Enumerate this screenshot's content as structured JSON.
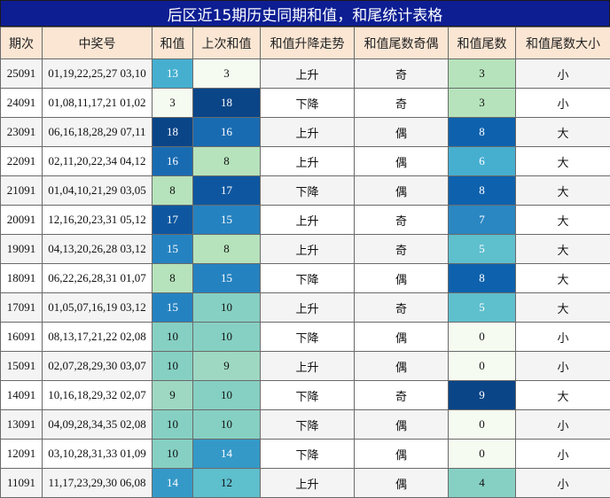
{
  "title": "后区近15期历史同期和值，和尾统计表格",
  "headers": [
    "期次",
    "中奖号",
    "和值",
    "上次和值",
    "和值升降走势",
    "和值尾数奇偶",
    "和值尾数",
    "和值尾数大小"
  ],
  "rows": [
    {
      "issue": "25091",
      "numbers": "01,19,22,25,27 03,10",
      "sum": "13",
      "prev_sum": "3",
      "trend": "上升",
      "parity": "奇",
      "tail": "3",
      "size": "小"
    },
    {
      "issue": "24091",
      "numbers": "01,08,11,17,21 01,02",
      "sum": "3",
      "prev_sum": "18",
      "trend": "下降",
      "parity": "奇",
      "tail": "3",
      "size": "小"
    },
    {
      "issue": "23091",
      "numbers": "06,16,18,28,29 07,11",
      "sum": "18",
      "prev_sum": "16",
      "trend": "上升",
      "parity": "偶",
      "tail": "8",
      "size": "大"
    },
    {
      "issue": "22091",
      "numbers": "02,11,20,22,34 04,12",
      "sum": "16",
      "prev_sum": "8",
      "trend": "上升",
      "parity": "偶",
      "tail": "6",
      "size": "大"
    },
    {
      "issue": "21091",
      "numbers": "01,04,10,21,29 03,05",
      "sum": "8",
      "prev_sum": "17",
      "trend": "下降",
      "parity": "偶",
      "tail": "8",
      "size": "大"
    },
    {
      "issue": "20091",
      "numbers": "12,16,20,23,31 05,12",
      "sum": "17",
      "prev_sum": "15",
      "trend": "上升",
      "parity": "奇",
      "tail": "7",
      "size": "大"
    },
    {
      "issue": "19091",
      "numbers": "04,13,20,26,28 03,12",
      "sum": "15",
      "prev_sum": "8",
      "trend": "上升",
      "parity": "奇",
      "tail": "5",
      "size": "大"
    },
    {
      "issue": "18091",
      "numbers": "06,22,26,28,31 01,07",
      "sum": "8",
      "prev_sum": "15",
      "trend": "下降",
      "parity": "偶",
      "tail": "8",
      "size": "大"
    },
    {
      "issue": "17091",
      "numbers": "01,05,07,16,19 03,12",
      "sum": "15",
      "prev_sum": "10",
      "trend": "上升",
      "parity": "奇",
      "tail": "5",
      "size": "大"
    },
    {
      "issue": "16091",
      "numbers": "08,13,17,21,22 02,08",
      "sum": "10",
      "prev_sum": "10",
      "trend": "下降",
      "parity": "偶",
      "tail": "0",
      "size": "小"
    },
    {
      "issue": "15091",
      "numbers": "02,07,28,29,30 03,07",
      "sum": "10",
      "prev_sum": "9",
      "trend": "上升",
      "parity": "偶",
      "tail": "0",
      "size": "小"
    },
    {
      "issue": "14091",
      "numbers": "10,16,18,29,32 02,07",
      "sum": "9",
      "prev_sum": "10",
      "trend": "下降",
      "parity": "奇",
      "tail": "9",
      "size": "大"
    },
    {
      "issue": "13091",
      "numbers": "04,09,28,34,35 02,08",
      "sum": "10",
      "prev_sum": "10",
      "trend": "下降",
      "parity": "偶",
      "tail": "0",
      "size": "小"
    },
    {
      "issue": "12091",
      "numbers": "03,10,28,31,33 01,09",
      "sum": "10",
      "prev_sum": "14",
      "trend": "下降",
      "parity": "偶",
      "tail": "0",
      "size": "小"
    },
    {
      "issue": "11091",
      "numbers": "11,17,23,29,30 06,08",
      "sum": "14",
      "prev_sum": "12",
      "trend": "上升",
      "parity": "偶",
      "tail": "4",
      "size": "小"
    }
  ],
  "colors": {
    "title_bg": "#0d1e93",
    "header_bg": "#fbe6d3",
    "row_alt_bg": "#f4f4f4",
    "sum_scale": {
      "3": "#f5fbf0",
      "8": "#b6e3bb",
      "9": "#9ed8c3",
      "10": "#86d0c3",
      "12": "#5ebfcd",
      "13": "#46afd0",
      "14": "#3599c8",
      "15": "#2582c0",
      "16": "#196bb1",
      "17": "#0e57a0",
      "18": "#0a4588"
    },
    "tail_scale": {
      "0": "#f5fbf0",
      "3": "#b6e3bb",
      "4": "#86d0c3",
      "5": "#5ebfcd",
      "6": "#46afd0",
      "7": "#2a87c2",
      "8": "#0e62ad",
      "9": "#0a4588"
    }
  }
}
